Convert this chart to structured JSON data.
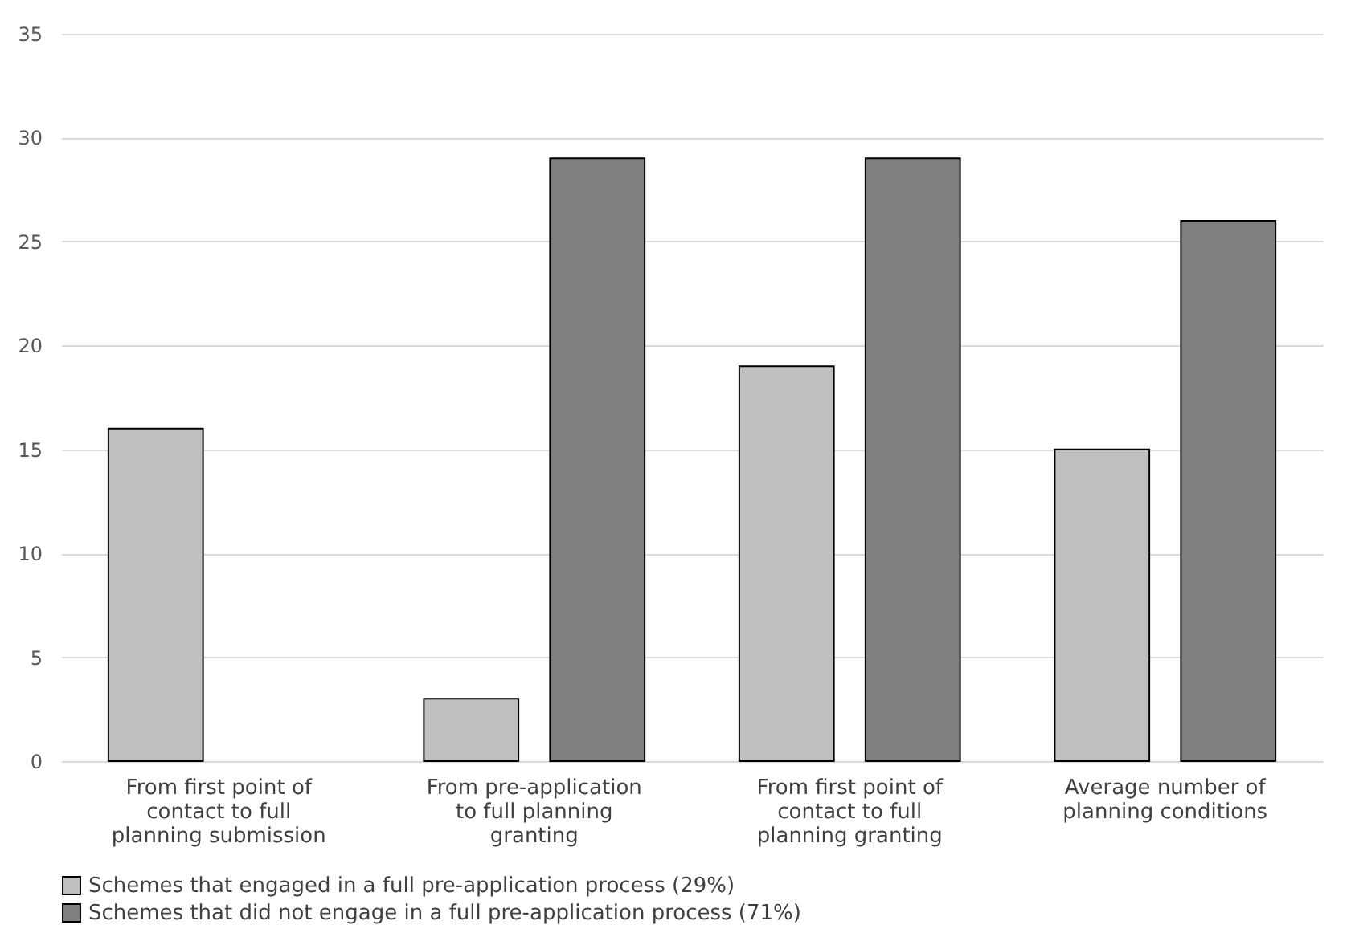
{
  "chart_data": {
    "type": "bar",
    "categories": [
      "From first point of contact to full planning submission",
      "From pre-application to full planning granting",
      "From first point of contact to full planning granting",
      "Average number of planning conditions"
    ],
    "series": [
      {
        "name": "Schemes that engaged in a full pre-application process (29%)",
        "color": "#bfbfbf",
        "values": [
          16,
          3,
          19,
          15
        ]
      },
      {
        "name": "Schemes that did not engage in a full pre-application process (71%)",
        "color": "#7f7f7f",
        "values": [
          null,
          29,
          29,
          26
        ]
      }
    ],
    "ylim": [
      0,
      35
    ],
    "yticks": [
      0,
      5,
      10,
      15,
      20,
      25,
      30,
      35
    ],
    "grid": "y",
    "legend": "bottom"
  }
}
